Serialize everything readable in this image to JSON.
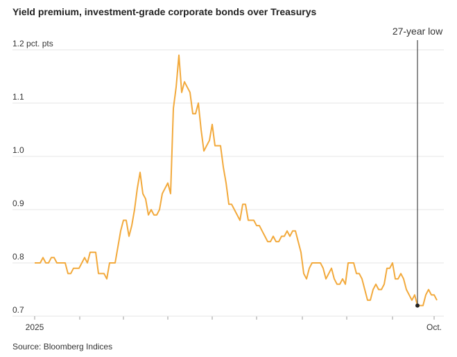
{
  "chart_data": {
    "type": "line",
    "title": "Yield premium, investment-grade corporate bonds over Treasurys",
    "source": "Source: Bloomberg Indices",
    "annotation": "27-year low",
    "categories": [
      "2025",
      null,
      null,
      null,
      null,
      null,
      null,
      null,
      null,
      null,
      null,
      null,
      null,
      null,
      null,
      null,
      null,
      null,
      null,
      null,
      null,
      null,
      null,
      null,
      null,
      null,
      null,
      null,
      null,
      null,
      null,
      null,
      null,
      null,
      null,
      null,
      null,
      null,
      null,
      null,
      null,
      null,
      null,
      null,
      null,
      null,
      null,
      null,
      null,
      null,
      null,
      null,
      null,
      null,
      null,
      null,
      null,
      null,
      null,
      null,
      null,
      null,
      null,
      null,
      null,
      null,
      null,
      null,
      null,
      null,
      null,
      null,
      null,
      null,
      null,
      null,
      null,
      null,
      null,
      null,
      null,
      null,
      null,
      null,
      null,
      null,
      null,
      null,
      null,
      null,
      null,
      null,
      null,
      null,
      null,
      null,
      null,
      null,
      null,
      null,
      null,
      null,
      null,
      null,
      null,
      null,
      null,
      null,
      null,
      null,
      null,
      null,
      null,
      null,
      null,
      null,
      null,
      null,
      null,
      null,
      null,
      null,
      null,
      null,
      null,
      null,
      null,
      null,
      null,
      null,
      null,
      null,
      null,
      null,
      null,
      null,
      null,
      null,
      null,
      null,
      null,
      null,
      null,
      null,
      "Oct.",
      null
    ],
    "series": [
      {
        "name": "Yield premium",
        "color": "#f2a93b",
        "values": [
          0.8,
          0.8,
          0.8,
          0.81,
          0.8,
          0.8,
          0.81,
          0.81,
          0.8,
          0.8,
          0.8,
          0.8,
          0.78,
          0.78,
          0.79,
          0.79,
          0.79,
          0.8,
          0.81,
          0.8,
          0.82,
          0.82,
          0.82,
          0.78,
          0.78,
          0.78,
          0.77,
          0.8,
          0.8,
          0.8,
          0.83,
          0.86,
          0.88,
          0.88,
          0.85,
          0.87,
          0.9,
          0.94,
          0.97,
          0.93,
          0.92,
          0.89,
          0.9,
          0.89,
          0.89,
          0.9,
          0.93,
          0.94,
          0.95,
          0.93,
          1.09,
          1.13,
          1.19,
          1.12,
          1.14,
          1.13,
          1.12,
          1.08,
          1.08,
          1.1,
          1.05,
          1.01,
          1.02,
          1.03,
          1.06,
          1.02,
          1.02,
          1.02,
          0.98,
          0.95,
          0.91,
          0.91,
          0.9,
          0.89,
          0.88,
          0.91,
          0.91,
          0.88,
          0.88,
          0.88,
          0.87,
          0.87,
          0.86,
          0.85,
          0.84,
          0.84,
          0.85,
          0.84,
          0.84,
          0.85,
          0.85,
          0.86,
          0.85,
          0.86,
          0.86,
          0.84,
          0.82,
          0.78,
          0.77,
          0.79,
          0.8,
          0.8,
          0.8,
          0.8,
          0.79,
          0.77,
          0.78,
          0.79,
          0.77,
          0.76,
          0.76,
          0.77,
          0.76,
          0.8,
          0.8,
          0.8,
          0.78,
          0.78,
          0.77,
          0.75,
          0.73,
          0.73,
          0.75,
          0.76,
          0.75,
          0.75,
          0.76,
          0.79,
          0.79,
          0.8,
          0.77,
          0.77,
          0.78,
          0.77,
          0.75,
          0.74,
          0.73,
          0.74,
          0.72,
          0.72,
          0.72,
          0.74,
          0.75,
          0.74,
          0.74,
          0.73
        ]
      }
    ],
    "ylim": [
      0.7,
      1.2
    ],
    "yticks": [
      0.7,
      0.8,
      0.9,
      {
        "value": 1,
        "label": "1.0"
      },
      1.1,
      {
        "value": 1.2,
        "label": "1.2 pct. pts"
      }
    ],
    "grid": true
  }
}
